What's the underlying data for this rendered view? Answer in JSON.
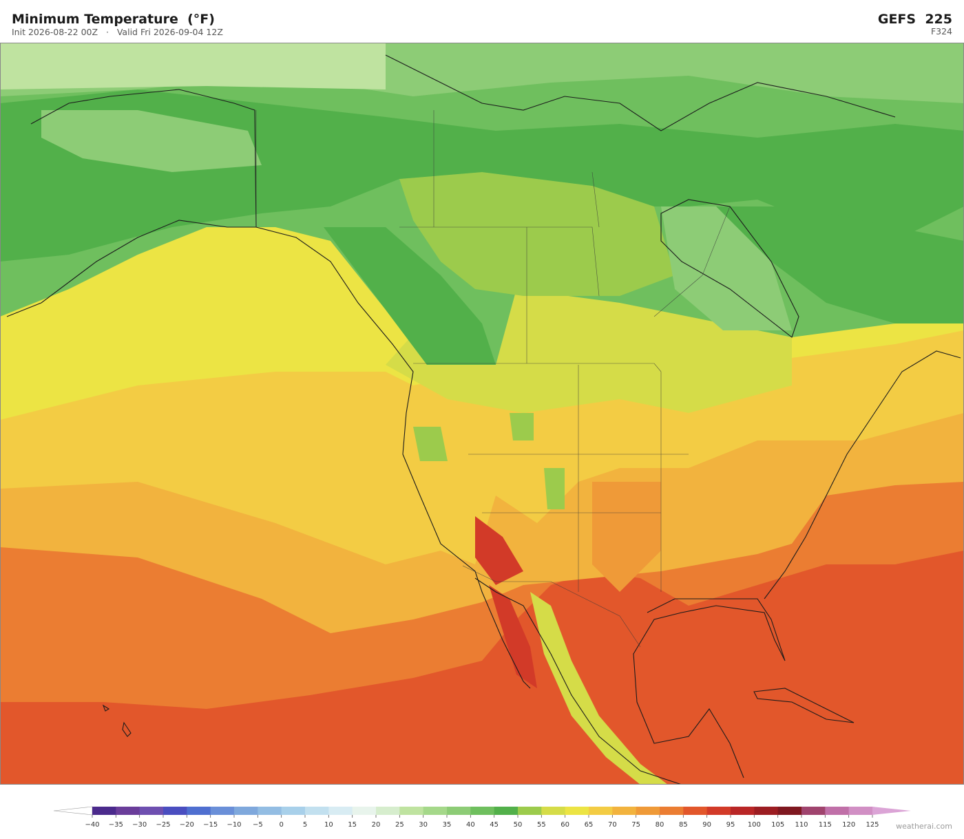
{
  "header": {
    "title": "Minimum Temperature  (°F)",
    "subtitle": "Init 2026-08-22 00Z   ·   Valid Fri 2026-09-04 12Z",
    "model": "GEFS  225",
    "forecast_hour": "F324"
  },
  "colorbar": {
    "ticks": [
      {
        "value": -40,
        "label": "−40"
      },
      {
        "value": -35,
        "label": "−35"
      },
      {
        "value": -30,
        "label": "−30"
      },
      {
        "value": -25,
        "label": "−25"
      },
      {
        "value": -20,
        "label": "−20"
      },
      {
        "value": -15,
        "label": "−15"
      },
      {
        "value": -10,
        "label": "−10"
      },
      {
        "value": -5,
        "label": "−5"
      },
      0,
      5,
      10,
      15,
      20,
      25,
      30,
      35,
      40,
      45,
      50,
      55,
      60,
      65,
      70,
      75,
      80,
      85,
      90,
      95,
      100,
      105,
      110,
      115,
      120,
      125
    ],
    "colors": [
      "#4b2a8c",
      "#6a3d9a",
      "#6e4fb0",
      "#4a4ec0",
      "#4f6fd0",
      "#6a8fd8",
      "#7fa8dc",
      "#93bde3",
      "#a8d0ea",
      "#c2e0ef",
      "#d8ecf3",
      "#e8f4ec",
      "#d6edcd",
      "#bfe3a0",
      "#a5d88a",
      "#8dcc76",
      "#6fbf5e",
      "#52b04a",
      "#9ccb4c",
      "#d5dc48",
      "#ece444",
      "#f3cc44",
      "#f2b33e",
      "#ef9a38",
      "#eb7d32",
      "#e2572b",
      "#d23a28",
      "#b92626",
      "#9c1d22",
      "#7f1820",
      "#a0446e",
      "#c070a8",
      "#d18fc4"
    ],
    "under_color": "#ffffff",
    "over_color": "#dba4d6"
  },
  "watermark": "weatherai.com"
}
